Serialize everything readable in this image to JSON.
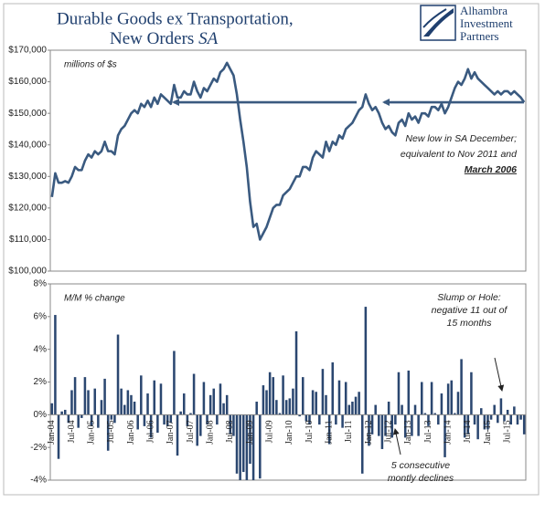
{
  "logo": [
    "Alhambra",
    "Investment",
    "Partners"
  ],
  "chart_data": [
    {
      "type": "line",
      "title": [
        "Durable Goods ex Transportation,",
        "New Orders"
      ],
      "title_emphasis": "SA",
      "note": "millions of $s",
      "annotation": {
        "lines": [
          "New low in SA December;",
          "equivalent to Nov 2011 and"
        ],
        "emphasis": "March 2006"
      },
      "color": "#3a5a80",
      "ylim": [
        100000,
        170000
      ],
      "yticks": [
        {
          "value": 100000,
          "label": "$100,000"
        },
        {
          "value": 110000,
          "label": "$110,000"
        },
        {
          "value": 120000,
          "label": "$120,000"
        },
        {
          "value": 130000,
          "label": "$130,000"
        },
        {
          "value": 140000,
          "label": "$140,000"
        },
        {
          "value": 150000,
          "label": "$150,000"
        },
        {
          "value": 160000,
          "label": "$160,000"
        },
        {
          "value": 170000,
          "label": "$170,000"
        }
      ],
      "values": [
        123500,
        131000,
        128000,
        128000,
        128500,
        128000,
        130000,
        133000,
        132000,
        132000,
        135000,
        137000,
        136000,
        138000,
        137000,
        138000,
        141000,
        138000,
        138000,
        137000,
        143000,
        145000,
        146000,
        148000,
        150000,
        151000,
        150000,
        153000,
        152000,
        154000,
        152000,
        155000,
        153000,
        156000,
        155000,
        154000,
        153000,
        159000,
        155000,
        155000,
        157000,
        156000,
        156000,
        160000,
        157000,
        155000,
        158000,
        157000,
        159000,
        161000,
        160000,
        163000,
        164000,
        166000,
        164000,
        162000,
        156000,
        148000,
        141000,
        133000,
        122000,
        114000,
        115000,
        110000,
        112000,
        114000,
        117000,
        120000,
        121000,
        121000,
        124000,
        125000,
        126000,
        128000,
        130000,
        130000,
        133000,
        133000,
        132000,
        136000,
        138000,
        137000,
        136000,
        141000,
        138000,
        141000,
        140000,
        143000,
        142000,
        145000,
        146000,
        147000,
        149000,
        151000,
        152000,
        156000,
        153000,
        151000,
        152000,
        150000,
        147000,
        145000,
        146000,
        144000,
        143000,
        147000,
        148000,
        146000,
        150000,
        148000,
        149000,
        147000,
        150000,
        150000,
        149000,
        152000,
        152000,
        151000,
        153000,
        150000,
        152000,
        155000,
        158000,
        160000,
        159000,
        161000,
        164000,
        161000,
        163000,
        161000,
        160000,
        159000,
        158000,
        157000,
        156000,
        157000,
        156000,
        157000,
        157000,
        156000,
        157000,
        156000,
        155000,
        153500
      ]
    },
    {
      "type": "bar",
      "note": "M/M % change",
      "annotations": [
        [
          "Slump or Hole:",
          "negative 11 out of",
          "15 months"
        ],
        [
          "5 consecutive",
          "montly declines"
        ]
      ],
      "color": "#2b4770",
      "ylim": [
        -4,
        8
      ],
      "yticks": [
        {
          "value": -4,
          "label": "-4%"
        },
        {
          "value": -2,
          "label": "-2%"
        },
        {
          "value": 0,
          "label": "0%"
        },
        {
          "value": 2,
          "label": "2%"
        },
        {
          "value": 4,
          "label": "4%"
        },
        {
          "value": 6,
          "label": "6%"
        },
        {
          "value": 8,
          "label": "8%"
        }
      ],
      "categories": [
        "Jan-04",
        null,
        null,
        null,
        null,
        null,
        "Jul-04",
        null,
        null,
        null,
        null,
        null,
        "Jan-05",
        null,
        null,
        null,
        null,
        null,
        "Jul-05",
        null,
        null,
        null,
        null,
        null,
        "Jan-06",
        null,
        null,
        null,
        null,
        null,
        "Jul-06",
        null,
        null,
        null,
        null,
        null,
        "Jan-07",
        null,
        null,
        null,
        null,
        null,
        "Jul-07",
        null,
        null,
        null,
        null,
        null,
        "Jan-08",
        null,
        null,
        null,
        null,
        null,
        "Jul-08",
        null,
        null,
        null,
        null,
        null,
        "Jan-09",
        null,
        null,
        null,
        null,
        null,
        "Jul-09",
        null,
        null,
        null,
        null,
        null,
        "Jan-10",
        null,
        null,
        null,
        null,
        null,
        "Jul-10",
        null,
        null,
        null,
        null,
        null,
        "Jan-11",
        null,
        null,
        null,
        null,
        null,
        "Jul-11",
        null,
        null,
        null,
        null,
        null,
        "Jan-12",
        null,
        null,
        null,
        null,
        null,
        "Jul-12",
        null,
        null,
        null,
        null,
        null,
        "Jan-13",
        null,
        null,
        null,
        null,
        null,
        "Jul-13",
        null,
        null,
        null,
        null,
        null,
        "Jan-14",
        null,
        null,
        null,
        null,
        null,
        "Jul-14",
        null,
        null,
        null,
        null,
        null,
        "Jan-15",
        null,
        null,
        null,
        null,
        null,
        "Jul-15",
        null,
        null,
        null,
        null,
        null
      ],
      "values": [
        0.7,
        6.1,
        -2.7,
        0.2,
        0.3,
        -0.5,
        1.5,
        2.3,
        -0.8,
        -0.2,
        2.3,
        1.5,
        -0.7,
        1.6,
        -0.8,
        0.9,
        2.2,
        -2.2,
        -0.3,
        -0.5,
        4.9,
        1.6,
        0.6,
        1.5,
        1.2,
        0.8,
        -0.9,
        2.4,
        -0.7,
        1.3,
        -1.4,
        2.1,
        -1.1,
        1.9,
        -0.6,
        -0.7,
        -0.5,
        3.9,
        -2.5,
        0.2,
        1.3,
        -0.7,
        0.1,
        2.5,
        -1.9,
        -1.3,
        2.0,
        -0.6,
        1.2,
        1.6,
        -0.6,
        1.9,
        0.7,
        1.2,
        -1.2,
        -1.3,
        -3.6,
        -4.0,
        -3.5,
        -4.0,
        -3.0,
        -4.0,
        0.8,
        -3.9,
        1.8,
        1.5,
        2.6,
        2.3,
        0.9,
        0.1,
        2.4,
        0.9,
        1.0,
        1.6,
        5.1,
        -0.1,
        2.3,
        -0.4,
        -0.6,
        1.5,
        1.4,
        -0.6,
        2.8,
        1.2,
        -1.8,
        3.2,
        -0.6,
        2.1,
        -0.8,
        2.0,
        0.6,
        0.8,
        1.1,
        1.4,
        -3.6,
        6.6,
        -1.9,
        -1.2,
        0.6,
        -1.3,
        -2.1,
        -1.3,
        0.8,
        -1.4,
        -0.6,
        2.6,
        0.6,
        -1.4,
        2.7,
        -1.3,
        0.6,
        -1.3,
        2.0,
        0.1,
        -0.7,
        2.0,
        0.1,
        -0.6,
        1.3,
        -2.6,
        1.9,
        2.1,
        0.1,
        1.4,
        3.4,
        -1.4,
        -1.2,
        2.6,
        -0.6,
        -1.5,
        0.4,
        -0.9,
        -0.9,
        -0.3,
        0.6,
        -0.5,
        1.0,
        -0.4,
        0.3,
        -0.6,
        0.5,
        -0.6,
        -0.3,
        -1.2
      ]
    }
  ]
}
